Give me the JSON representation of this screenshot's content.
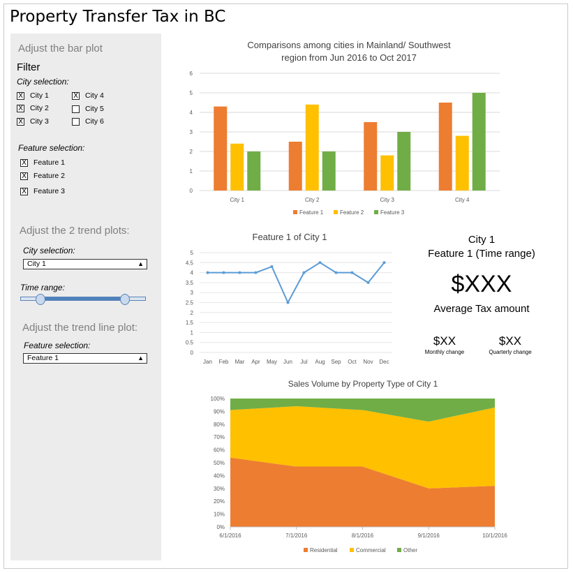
{
  "app": {
    "title": "Property Transfer Tax in BC"
  },
  "sidebar": {
    "bar_section_title": "Adjust the bar plot",
    "filter_title": "Filter",
    "city_selection_label": "City selection:",
    "cities": [
      {
        "label": "City 1",
        "checked": "X"
      },
      {
        "label": "City 2",
        "checked": "X"
      },
      {
        "label": "City 3",
        "checked": "X"
      },
      {
        "label": "City 4",
        "checked": "X"
      },
      {
        "label": "City 5",
        "checked": ""
      },
      {
        "label": "City 6",
        "checked": ""
      }
    ],
    "feature_selection_label": "Feature selection:",
    "features": [
      {
        "label": "Feature 1",
        "checked": "X"
      },
      {
        "label": "Feature 2",
        "checked": "X"
      },
      {
        "label": "Feature 3",
        "checked": "X"
      }
    ],
    "trend_section_title": "Adjust the 2 trend plots:",
    "trend_city_label": "City selection:",
    "trend_city_value": "City 1",
    "time_range_label": "Time range:",
    "trendline_section_title": "Adjust the trend line plot:",
    "trendline_feature_label": "Feature selection:",
    "trendline_feature_value": "Feature 1",
    "select_arrow": "▲"
  },
  "kpi": {
    "city": "City 1",
    "feature": "Feature 1 (Time range)",
    "value": "$XXX",
    "value_label": "Average Tax amount",
    "monthly_value": "$XX",
    "monthly_label": "Monthly change",
    "quarterly_value": "$XX",
    "quarterly_label": "Quarterly change"
  },
  "chart_data": [
    {
      "type": "bar",
      "title_line1": "Comparisons among cities in Mainland/ Southwest",
      "title_line2": "region from Jun 2016 to Oct 2017",
      "categories": [
        "City 1",
        "City 2",
        "City 3",
        "City 4"
      ],
      "series": [
        {
          "name": "Feature 1",
          "color": "#ed7d31",
          "values": [
            4.3,
            2.5,
            3.5,
            4.5
          ]
        },
        {
          "name": "Feature 2",
          "color": "#ffc000",
          "values": [
            2.4,
            4.4,
            1.8,
            2.8
          ]
        },
        {
          "name": "Feature 3",
          "color": "#70ad47",
          "values": [
            2,
            2,
            3,
            5
          ]
        }
      ],
      "yticks": [
        "0",
        "1",
        "2",
        "3",
        "4",
        "5",
        "6"
      ],
      "ylim": [
        0,
        6
      ],
      "legend": "bottom"
    },
    {
      "type": "line",
      "title": "Feature 1 of City 1",
      "categories": [
        "Jan",
        "Feb",
        "Mar",
        "Apr",
        "May",
        "Jun",
        "Jul",
        "Aug",
        "Sep",
        "Oct",
        "Nov",
        "Dec"
      ],
      "values": [
        4,
        4,
        4,
        4,
        4.3,
        2.5,
        4,
        4.5,
        4,
        4,
        3.5,
        4.5
      ],
      "color": "#5b9bd5",
      "yticks": [
        "0",
        "0.5",
        "1",
        "1.5",
        "2",
        "2.5",
        "3",
        "3.5",
        "4",
        "4.5",
        "5"
      ],
      "ylim": [
        0,
        5
      ]
    },
    {
      "type": "area",
      "title": "Sales Volume by Property Type of City 1",
      "x": [
        "6/1/2016",
        "7/1/2016",
        "8/1/2016",
        "9/1/2016",
        "10/1/2016"
      ],
      "series": [
        {
          "name": "Residential",
          "color": "#ed7d31",
          "values": [
            54,
            47,
            47,
            30,
            32
          ]
        },
        {
          "name": "Commercial",
          "color": "#ffc000",
          "values": [
            37,
            47,
            44,
            52,
            61
          ]
        },
        {
          "name": "Other",
          "color": "#70ad47",
          "values": [
            9,
            6,
            9,
            18,
            7
          ]
        }
      ],
      "yticks": [
        "0%",
        "10%",
        "20%",
        "30%",
        "40%",
        "50%",
        "60%",
        "70%",
        "80%",
        "90%",
        "100%"
      ],
      "stacked": "100%",
      "legend": "bottom"
    }
  ]
}
